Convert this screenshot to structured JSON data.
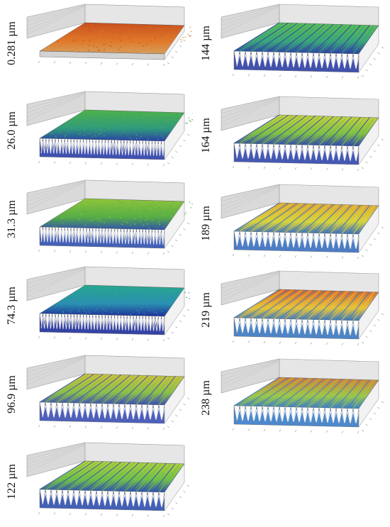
{
  "panels": [
    {
      "label": "0.281 µm",
      "style": "flat",
      "top": "#c8501d",
      "mid": "#e07a2a",
      "front": "#d5a060"
    },
    {
      "label": "26.0 µm",
      "style": "rough",
      "top": "#4fb24a",
      "mid": "#2f9a7c",
      "front": "#2b3fa8"
    },
    {
      "label": "31.3 µm",
      "style": "rough",
      "top": "#8fc43a",
      "mid": "#55ad46",
      "front": "#3050b0"
    },
    {
      "label": "74.3 µm",
      "style": "rough",
      "top": "#27a88e",
      "mid": "#2a8fb0",
      "front": "#1f2f9b"
    },
    {
      "label": "96.9 µm",
      "style": "ridge",
      "top": "#d6c23a",
      "mid": "#8ac04a",
      "front": "#3b4fb5"
    },
    {
      "label": "122 µm",
      "style": "ridge",
      "top": "#b9d23a",
      "mid": "#6fbf4a",
      "front": "#2f4fb0"
    },
    {
      "label": "144 µm",
      "style": "ridge",
      "top": "#5ec24f",
      "mid": "#3aa57a",
      "front": "#2d3fa5"
    },
    {
      "label": "164 µm",
      "style": "ridge",
      "top": "#cfd43a",
      "mid": "#7fc046",
      "front": "#3048ae"
    },
    {
      "label": "189 µm",
      "style": "ridge",
      "top": "#e1a236",
      "mid": "#d8d43c",
      "front": "#3a6fc0"
    },
    {
      "label": "219 µm",
      "style": "ridge",
      "top": "#d9622a",
      "mid": "#e7c43a",
      "front": "#3a78c2"
    },
    {
      "label": "238 µm",
      "style": "ridge",
      "top": "#e07834",
      "mid": "#9cc84a",
      "front": "#3a7dc8"
    }
  ]
}
